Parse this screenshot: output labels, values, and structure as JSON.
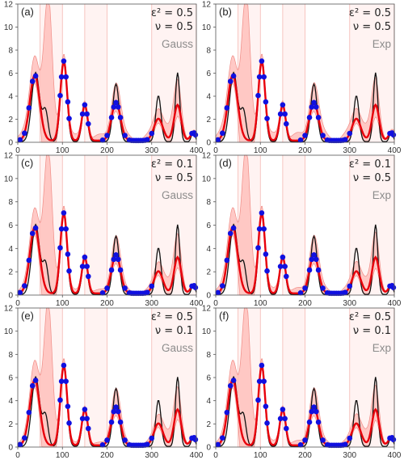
{
  "colors": {
    "truth": "#111111",
    "fit": "#e8000b",
    "band_fill": "#ffc0bc",
    "band_stroke": "#f08c86",
    "interval_fill": "#fff3f2",
    "interval_line": "#f5b8b3",
    "points": "#1010e0",
    "kernel_text": "#8c8c8c"
  },
  "chart_data": [
    {
      "type": "line",
      "panel": "(a)",
      "epsilon_text": "ε² = 0.5",
      "nu_text": "ν = 0.5",
      "kernel": "Gauss",
      "xlim": [
        0,
        400
      ],
      "ylim": [
        0,
        12
      ],
      "xticks": [
        "0",
        "100",
        "200",
        "300",
        "400"
      ],
      "yticks": [
        "0",
        "2",
        "4",
        "6",
        "8",
        "10",
        "12"
      ],
      "show_y_ticks": true,
      "show_x_ticks": true,
      "band_extra": 0.8
    },
    {
      "type": "line",
      "panel": "(b)",
      "epsilon_text": "ε² = 0.5",
      "nu_text": "ν = 0.5",
      "kernel": "Exp",
      "xlim": [
        0,
        400
      ],
      "ylim": [
        0,
        12
      ],
      "xticks": [
        "0",
        "100",
        "200",
        "300",
        "400"
      ],
      "yticks": [
        "0",
        "2",
        "4",
        "6",
        "8",
        "10",
        "12"
      ],
      "show_y_ticks": true,
      "show_x_ticks": true,
      "band_extra": 1.0
    },
    {
      "type": "line",
      "panel": "(c)",
      "epsilon_text": "ε² = 0.1",
      "nu_text": "ν = 0.5",
      "kernel": "Gauss",
      "xlim": [
        0,
        400
      ],
      "ylim": [
        0,
        12
      ],
      "xticks": [
        "0",
        "100",
        "200",
        "300",
        "400"
      ],
      "yticks": [
        "0",
        "2",
        "4",
        "6",
        "8",
        "10",
        "12"
      ],
      "show_y_ticks": true,
      "show_x_ticks": true,
      "band_extra": 0.5
    },
    {
      "type": "line",
      "panel": "(d)",
      "epsilon_text": "ε² = 0.1",
      "nu_text": "ν = 0.5",
      "kernel": "Exp",
      "xlim": [
        0,
        400
      ],
      "ylim": [
        0,
        12
      ],
      "xticks": [
        "0",
        "100",
        "200",
        "300",
        "400"
      ],
      "yticks": [
        "0",
        "2",
        "4",
        "6",
        "8",
        "10",
        "12"
      ],
      "show_y_ticks": true,
      "show_x_ticks": true,
      "band_extra": 0.7
    },
    {
      "type": "line",
      "panel": "(e)",
      "epsilon_text": "ε² = 0.5",
      "nu_text": "ν = 0.1",
      "kernel": "Gauss",
      "xlim": [
        0,
        400
      ],
      "ylim": [
        0,
        12
      ],
      "xticks": [
        "0",
        "100",
        "200",
        "300",
        "400"
      ],
      "yticks": [
        "0",
        "2",
        "4",
        "6",
        "8",
        "10",
        "12"
      ],
      "show_y_ticks": true,
      "show_x_ticks": true,
      "band_extra": 0.4
    },
    {
      "type": "line",
      "panel": "(f)",
      "epsilon_text": "ε² = 0.5",
      "nu_text": "ν = 0.1",
      "kernel": "Exp",
      "xlim": [
        0,
        400
      ],
      "ylim": [
        0,
        12
      ],
      "xticks": [
        "0",
        "100",
        "200",
        "300",
        "400"
      ],
      "yticks": [
        "0",
        "2",
        "4",
        "6",
        "8",
        "10",
        "12"
      ],
      "show_y_ticks": true,
      "show_x_ticks": true,
      "band_extra": 0.6
    }
  ],
  "shared": {
    "intervals": [
      [
        50,
        100
      ],
      [
        150,
        200
      ],
      [
        300,
        400
      ]
    ],
    "truth_peaks": [
      [
        40,
        6.0,
        9
      ],
      [
        62,
        2.6,
        6
      ],
      [
        103,
        7.1,
        7
      ],
      [
        150,
        3.2,
        6
      ],
      [
        220,
        5.0,
        7
      ],
      [
        315,
        4.0,
        6
      ],
      [
        358,
        6.0,
        5
      ],
      [
        393,
        0.9,
        4
      ]
    ],
    "fit_peaks": [
      [
        38,
        5.7,
        11
      ],
      [
        103,
        6.9,
        7.5
      ],
      [
        150,
        3.1,
        6.5
      ],
      [
        220,
        3.3,
        10
      ],
      [
        315,
        1.9,
        10
      ],
      [
        358,
        3.1,
        8
      ],
      [
        393,
        0.7,
        6
      ]
    ],
    "band_peaks": [
      [
        40,
        1.6,
        14
      ],
      [
        68,
        12.0,
        9
      ],
      [
        103,
        0.6,
        8
      ],
      [
        150,
        0.3,
        7
      ],
      [
        220,
        1.6,
        11
      ],
      [
        330,
        1.0,
        18
      ],
      [
        358,
        1.4,
        9
      ]
    ],
    "points_x": [
      5,
      15,
      25,
      33,
      40,
      103,
      98,
      95,
      108,
      112,
      115,
      150,
      145,
      155,
      158,
      190,
      200,
      210,
      215,
      220,
      225,
      230,
      240,
      250,
      255,
      260,
      265,
      270,
      275,
      280,
      285,
      290,
      300,
      390,
      395,
      398
    ]
  }
}
